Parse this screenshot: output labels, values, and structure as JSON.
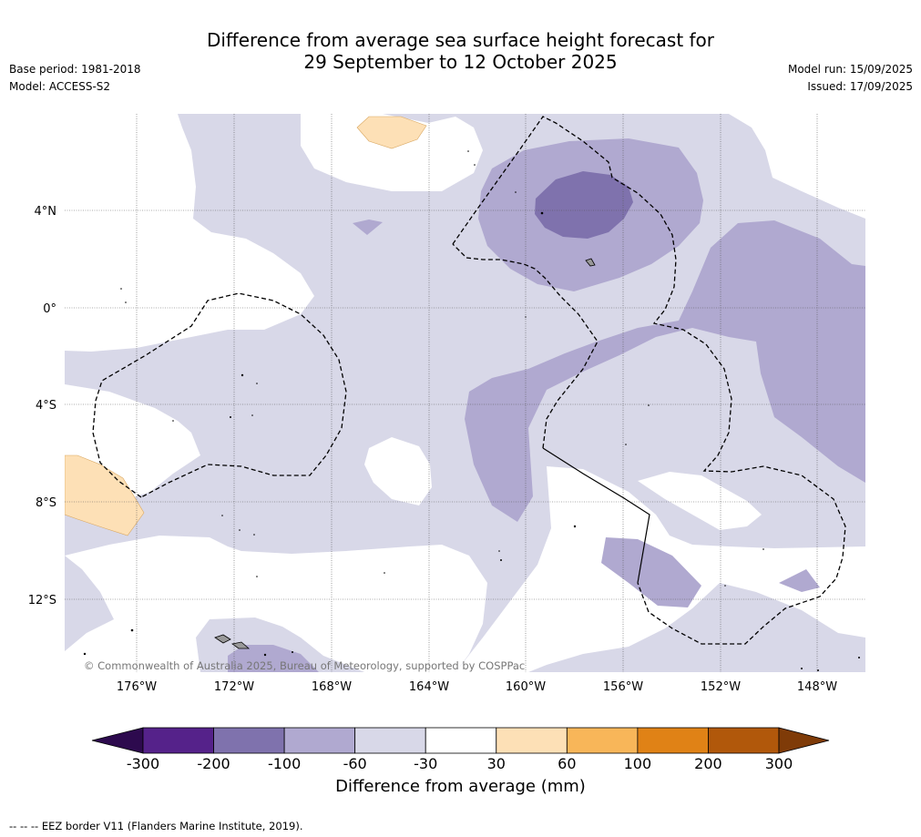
{
  "title": {
    "line1": "Difference from average sea surface height forecast for",
    "line2": "29 September to 12 October 2025"
  },
  "meta": {
    "base_period": "Base period: 1981-2018",
    "model": "Model: ACCESS-S2",
    "model_run": "Model run: 15/09/2025",
    "issued": "Issued: 17/09/2025"
  },
  "map": {
    "latitude_labels": [
      "4°N",
      "0°",
      "4°S",
      "8°S",
      "12°S"
    ],
    "longitude_labels": [
      "176°W",
      "172°W",
      "168°W",
      "164°W",
      "160°W",
      "156°W",
      "152°W",
      "148°W"
    ],
    "copyright": "© Commonwealth of Australia 2025, Bureau of Meteorology, supported by COSPPac",
    "colors": {
      "neg_300_200": "#55228a",
      "neg_200_100": "#7f72ad",
      "neg_100_60": "#b0a9d0",
      "neg_60_30": "#d8d8e8",
      "neutral": "#ffffff",
      "pos_30_60": "#fde0b6",
      "pos_60_100": "#f8b659",
      "pos_100_200": "#e08216",
      "pos_200_300": "#b1580b",
      "under": "#2d0a4e",
      "over": "#7f3b08"
    }
  },
  "colorbar": {
    "ticks": [
      "-300",
      "-200",
      "-100",
      "-60",
      "-30",
      "30",
      "60",
      "100",
      "200",
      "300"
    ],
    "colors": [
      "#55228a",
      "#7f72ad",
      "#b0a9d0",
      "#d8d8e8",
      "#ffffff",
      "#fde0b6",
      "#f8b659",
      "#e08216",
      "#b1580b"
    ],
    "under_color": "#2d0a4e",
    "over_color": "#7f3b08",
    "label": "Difference from average (mm)"
  },
  "footnote": "--  --  -- EEZ border V11 (Flanders Marine Institute, 2019)."
}
